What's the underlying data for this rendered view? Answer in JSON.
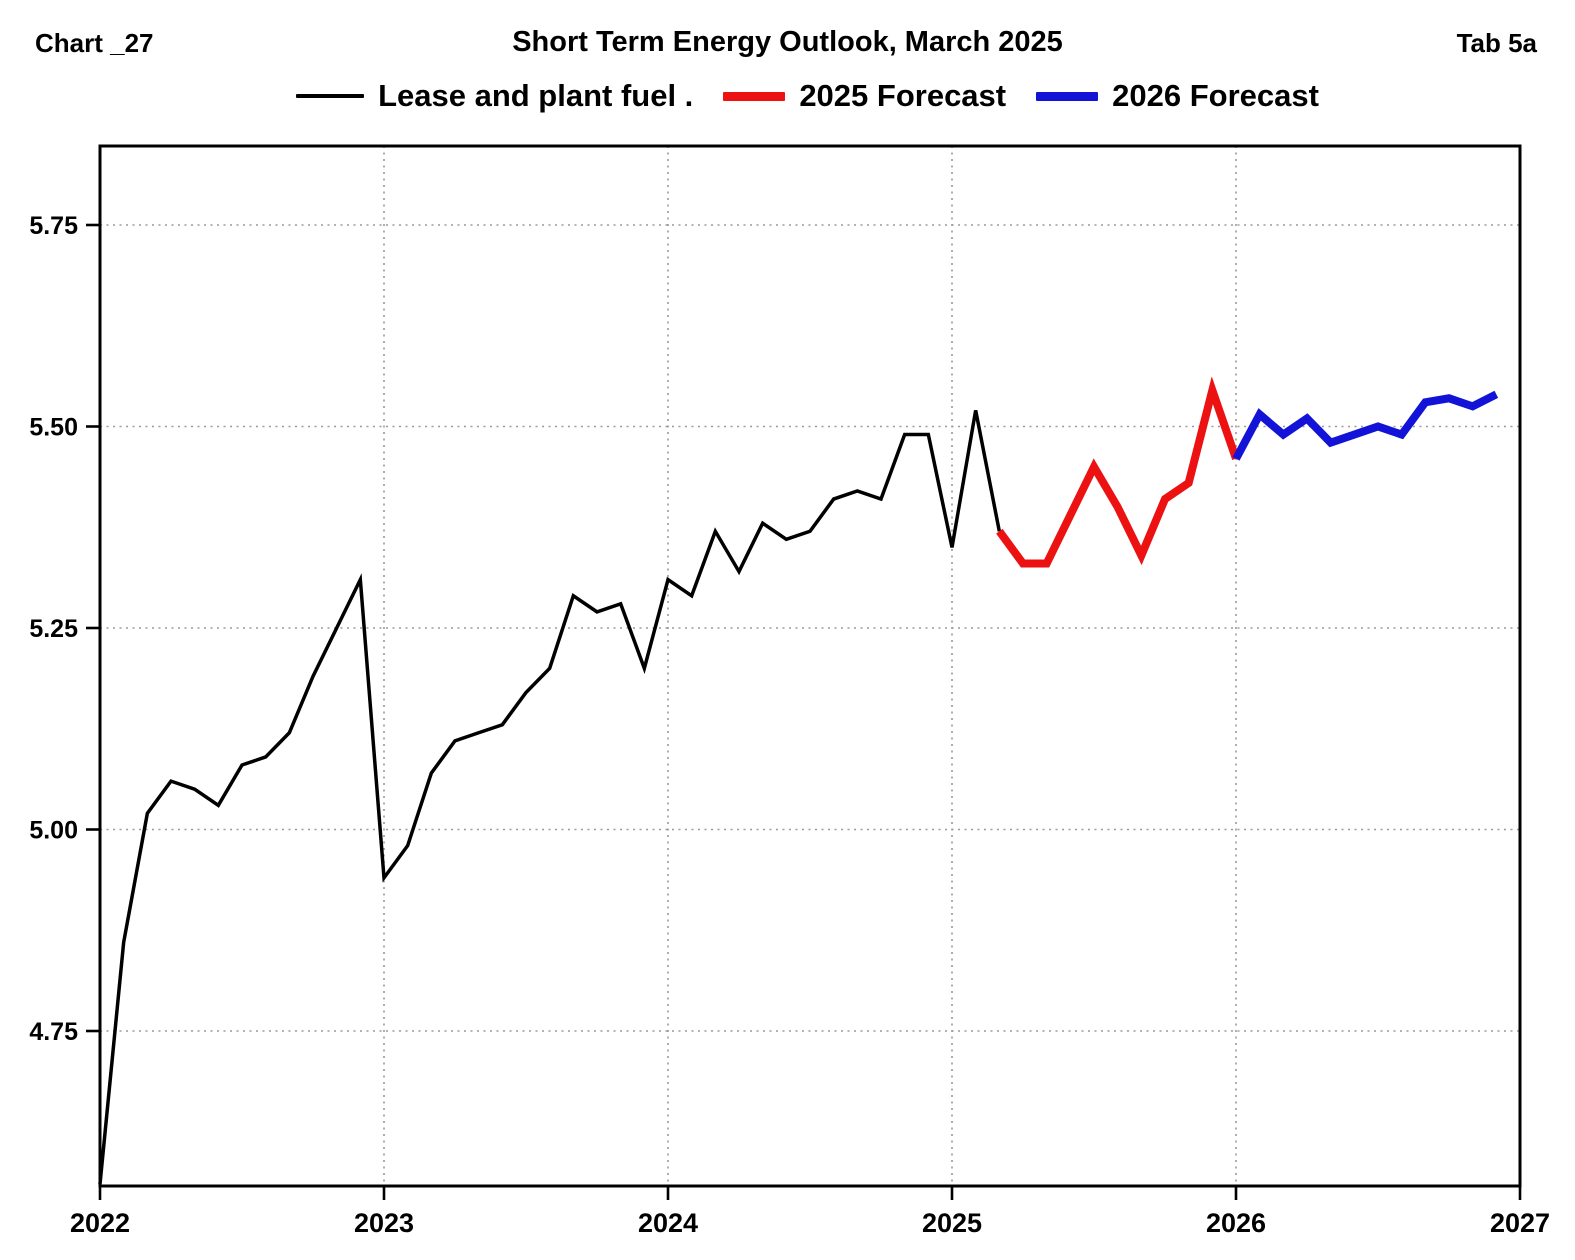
{
  "header": {
    "chart_label": "Chart _27",
    "title": "Short Term Energy Outlook, March 2025",
    "tab_label": "Tab 5a"
  },
  "legend": [
    {
      "label": "Lease and plant fuel .",
      "color": "#000000",
      "thickness": 4,
      "swatch_width": 68
    },
    {
      "label": "2025 Forecast",
      "color": "#ec1212",
      "thickness": 9,
      "swatch_width": 62
    },
    {
      "label": "2026 Forecast",
      "color": "#1313d8",
      "thickness": 9,
      "swatch_width": 62
    }
  ],
  "chart_data": {
    "type": "line",
    "title": "Short Term Energy Outlook, March 2025",
    "xlabel": "",
    "ylabel": "",
    "frequency": "monthly",
    "x_start": "2022-01",
    "x_end": "2026-12",
    "xlim": [
      2022,
      2027
    ],
    "ylim": [
      4.555,
      5.85
    ],
    "x_tick_labels": [
      "2022",
      "2023",
      "2024",
      "2025",
      "2026",
      "2027"
    ],
    "y_ticks": [
      4.75,
      5.0,
      5.25,
      5.5,
      5.75
    ],
    "y_tick_labels": [
      "4.75",
      "5.00",
      "5.25",
      "5.50",
      "5.75"
    ],
    "grid": "dotted",
    "legend_position": "top",
    "series": [
      {
        "name": "Lease and plant fuel .",
        "color": "#000000",
        "line_width": 3.5,
        "start_month": "2022-01",
        "start_index": 0,
        "values": [
          4.56,
          4.86,
          5.02,
          5.06,
          5.05,
          5.03,
          5.08,
          5.09,
          5.12,
          5.19,
          5.25,
          5.31,
          4.94,
          4.98,
          5.07,
          5.11,
          5.12,
          5.13,
          5.17,
          5.2,
          5.29,
          5.27,
          5.28,
          5.2,
          5.31,
          5.29,
          5.37,
          5.32,
          5.38,
          5.36,
          5.37,
          5.41,
          5.42,
          5.41,
          5.49,
          5.49,
          5.35,
          5.52,
          5.37
        ]
      },
      {
        "name": "2025 Forecast",
        "color": "#ec1212",
        "line_width": 8,
        "start_month": "2025-03",
        "start_index": 38,
        "values": [
          5.37,
          5.33,
          5.33,
          5.39,
          5.45,
          5.4,
          5.34,
          5.41,
          5.43,
          5.545,
          5.46
        ]
      },
      {
        "name": "2026 Forecast",
        "color": "#1313d8",
        "line_width": 8,
        "start_month": "2026-01",
        "start_index": 48,
        "values": [
          5.46,
          5.515,
          5.49,
          5.51,
          5.48,
          5.49,
          5.5,
          5.49,
          5.53,
          5.535,
          5.525,
          5.54
        ]
      }
    ]
  }
}
